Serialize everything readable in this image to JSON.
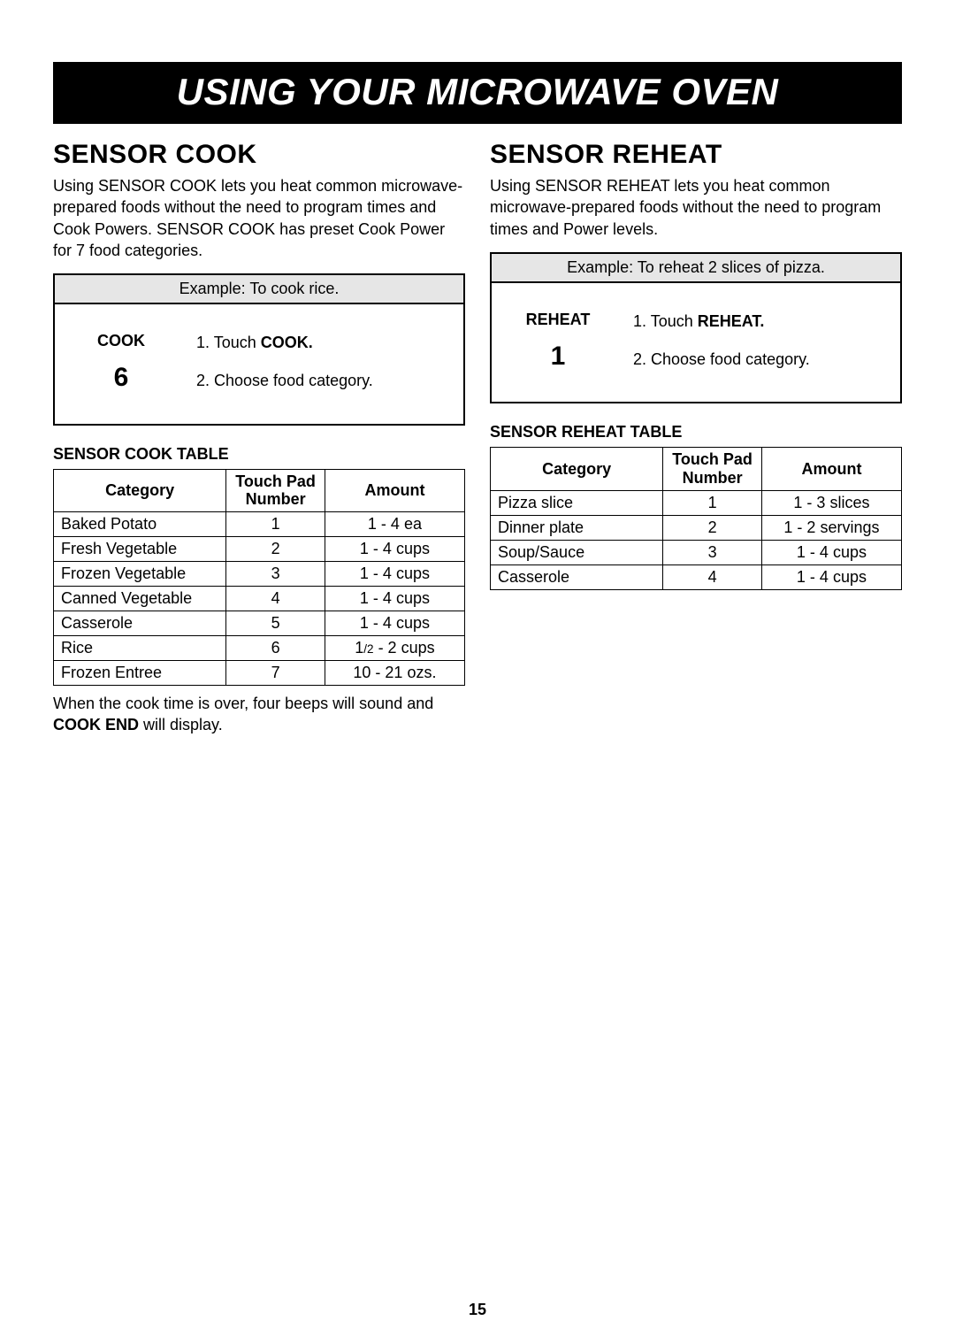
{
  "page_number": "15",
  "banner": "USING YOUR MICROWAVE OVEN",
  "left": {
    "title": "SENSOR COOK",
    "intro": "Using SENSOR COOK lets you heat common microwave-prepared foods without the need to program times and Cook Powers. SENSOR COOK has preset Cook Power for 7 food categories.",
    "example_header": "Example: To cook rice.",
    "example_key_label": "COOK",
    "example_key_number": "6",
    "example_step1_prefix": "1. Touch ",
    "example_step1_kw": "COOK.",
    "example_step2": "2. Choose food category.",
    "table_label": "SENSOR COOK TABLE",
    "thead": {
      "category": "Category",
      "number_l1": "Touch Pad",
      "number_l2": "Number",
      "amount": "Amount"
    },
    "rows": [
      {
        "cat": "Baked Potato",
        "num": "1",
        "amt": "1 - 4 ea"
      },
      {
        "cat": "Fresh Vegetable",
        "num": "2",
        "amt": "1 - 4 cups"
      },
      {
        "cat": "Frozen Vegetable",
        "num": "3",
        "amt": "1 - 4 cups"
      },
      {
        "cat": "Canned Vegetable",
        "num": "4",
        "amt": "1 - 4 cups"
      },
      {
        "cat": "Casserole",
        "num": "5",
        "amt": "1 - 4 cups"
      },
      {
        "cat": "Rice",
        "num": "6",
        "amt_pre": "1",
        "amt_frac": "/2",
        "amt_post": " - 2 cups"
      },
      {
        "cat": "Frozen Entree",
        "num": "7",
        "amt": "10 - 21 ozs."
      }
    ],
    "footnote_pre": "When the cook time is over, four beeps will sound and ",
    "footnote_kw": "COOK END",
    "footnote_post": " will display."
  },
  "right": {
    "title": "SENSOR REHEAT",
    "intro": "Using SENSOR REHEAT lets you heat common microwave-prepared foods without the need to program times and Power levels.",
    "example_header": "Example: To reheat 2 slices of pizza.",
    "example_key_label": "REHEAT",
    "example_key_number": "1",
    "example_step1_prefix": "1. Touch ",
    "example_step1_kw": "REHEAT.",
    "example_step2": "2. Choose food category.",
    "table_label": "SENSOR REHEAT TABLE",
    "thead": {
      "category": "Category",
      "number_l1": "Touch Pad",
      "number_l2": "Number",
      "amount": "Amount"
    },
    "rows": [
      {
        "cat": "Pizza slice",
        "num": "1",
        "amt": "1 - 3 slices"
      },
      {
        "cat": "Dinner plate",
        "num": "2",
        "amt": "1 - 2 servings"
      },
      {
        "cat": "Soup/Sauce",
        "num": "3",
        "amt": "1 - 4 cups"
      },
      {
        "cat": "Casserole",
        "num": "4",
        "amt": "1 - 4 cups"
      }
    ]
  }
}
